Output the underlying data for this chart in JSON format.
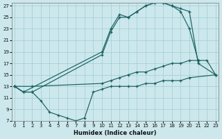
{
  "bg_color": "#cce8ec",
  "grid_color": "#a0ccd4",
  "line_color": "#1a6060",
  "xlabel": "Humidex (Indice chaleur)",
  "xlim": [
    -0.3,
    23.3
  ],
  "ylim": [
    7,
    27.5
  ],
  "yticks": [
    7,
    9,
    11,
    13,
    15,
    17,
    19,
    21,
    23,
    25,
    27
  ],
  "xticks": [
    0,
    1,
    2,
    3,
    4,
    5,
    6,
    7,
    8,
    9,
    10,
    11,
    12,
    13,
    14,
    15,
    16,
    17,
    18,
    19,
    20,
    21,
    22,
    23
  ],
  "lineA_x": [
    0,
    1,
    10,
    11,
    12,
    13,
    14,
    15,
    16,
    17,
    18,
    19,
    20,
    21,
    23
  ],
  "lineA_y": [
    13,
    12,
    19,
    23,
    25.5,
    25,
    26,
    27,
    27.5,
    27.5,
    27,
    26.5,
    26,
    17,
    15
  ],
  "lineB_x": [
    0,
    1,
    2,
    10,
    11,
    12,
    13,
    14,
    15,
    16,
    17,
    18,
    19,
    20,
    21
  ],
  "lineB_y": [
    13,
    12,
    12,
    18.5,
    22.5,
    25,
    25,
    26,
    27,
    27.5,
    27.5,
    27,
    26,
    23,
    17.5
  ],
  "lineC_x": [
    0,
    2,
    10,
    11,
    12,
    13,
    14,
    15,
    16,
    17,
    18,
    19,
    20,
    21,
    22,
    23
  ],
  "lineC_y": [
    13,
    13,
    13.5,
    14,
    14.5,
    15,
    15.5,
    15.5,
    16,
    16.5,
    17,
    17,
    17.5,
    17.5,
    17.5,
    15
  ],
  "lineD_x": [
    0,
    1,
    2,
    3,
    4,
    5,
    6,
    7,
    8,
    9,
    10,
    11,
    12,
    13,
    14,
    15,
    16,
    17,
    18,
    19,
    20,
    23
  ],
  "lineD_y": [
    13,
    12,
    12,
    10.5,
    8.5,
    8,
    7.5,
    7,
    7.5,
    12,
    12.5,
    13,
    13,
    13,
    13,
    13.5,
    13.5,
    14,
    14,
    14,
    14.5,
    15
  ]
}
